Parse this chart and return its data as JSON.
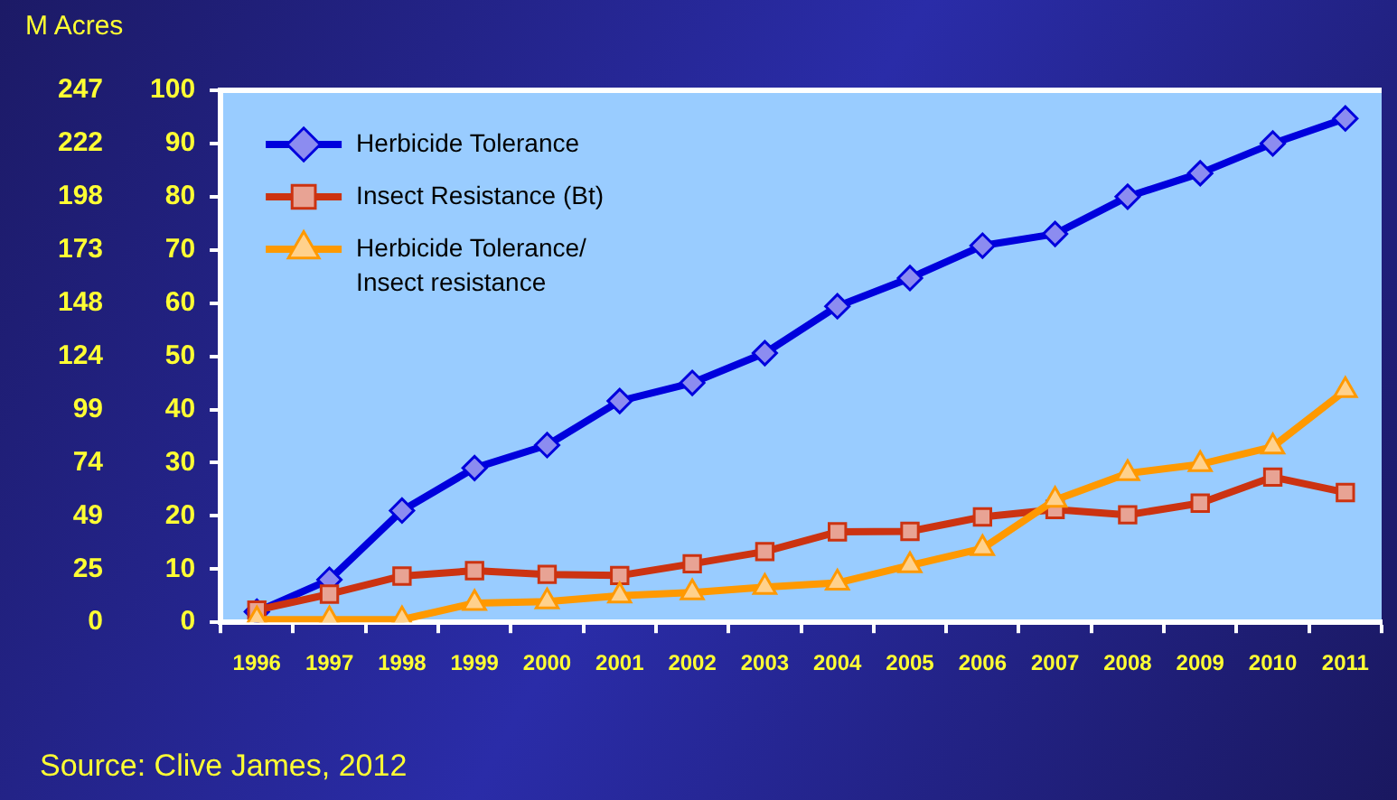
{
  "chart_data": {
    "type": "line",
    "y2label": "M Acres",
    "annotations": [
      "Source: Clive James, 2012"
    ],
    "categories": [
      "1996",
      "1997",
      "1998",
      "1999",
      "2000",
      "2001",
      "2002",
      "2003",
      "2004",
      "2005",
      "2006",
      "2007",
      "2008",
      "2009",
      "2010",
      "2011"
    ],
    "ylim": [
      0,
      100
    ],
    "yticks": [
      0,
      10,
      20,
      30,
      40,
      50,
      60,
      70,
      80,
      90,
      100
    ],
    "y2lim": [
      0,
      247.1
    ],
    "y2ticks": [
      0,
      {
        "value": 24.7,
        "label": "25"
      },
      {
        "value": 49.4,
        "label": "49"
      },
      {
        "value": 74.1,
        "label": "74"
      },
      {
        "value": 98.8,
        "label": "99"
      },
      {
        "value": 123.6,
        "label": "124"
      },
      {
        "value": 148.3,
        "label": "148"
      },
      {
        "value": 173,
        "label": "173"
      },
      {
        "value": 197.7,
        "label": "198"
      },
      {
        "value": 222.4,
        "label": "222"
      },
      {
        "value": 247.1,
        "label": "247"
      }
    ],
    "grid": false,
    "legend": "top left",
    "line_style": "solid",
    "series": [
      {
        "name": "Herbicide Tolerance",
        "color": "#0000dd",
        "marker": "diamond",
        "values": [
          2,
          8,
          21,
          29,
          33.3,
          41.6,
          45,
          50.6,
          59.4,
          64.7,
          70.8,
          73,
          80,
          84.4,
          90,
          94.7
        ]
      },
      {
        "name": "Insect Resistance (Bt)",
        "color": "#cc3311",
        "marker": "square",
        "values": [
          2.3,
          5.3,
          8.7,
          9.7,
          9,
          8.8,
          11,
          13.3,
          17,
          17.1,
          19.8,
          21.2,
          20.2,
          22.4,
          27.3,
          24.4
        ]
      },
      {
        "name": "Herbicide Tolerance/ Insect resistance",
        "color": "#ff9900",
        "marker": "triangle",
        "values": [
          0.5,
          0.5,
          0.5,
          3.6,
          3.9,
          5,
          5.6,
          6.6,
          7.4,
          10.7,
          13.9,
          23,
          28,
          29.7,
          33,
          43.6
        ]
      }
    ]
  }
}
